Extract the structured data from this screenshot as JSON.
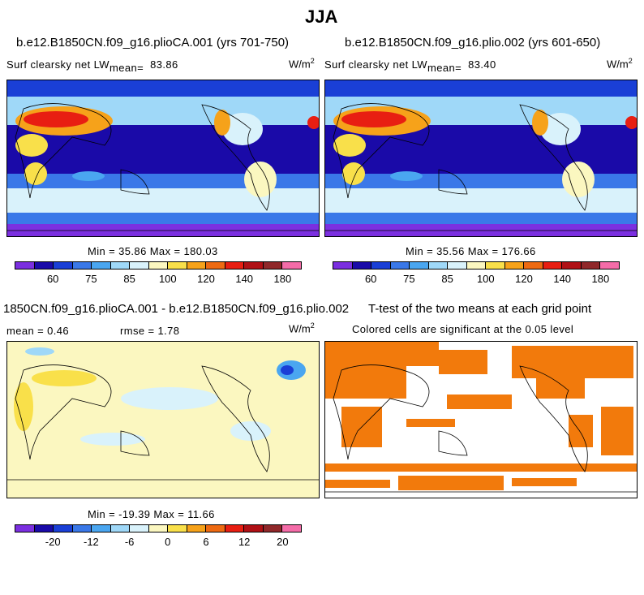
{
  "page_title": "JJA",
  "colors": {
    "abs_scale": [
      "#7b2fe0",
      "#1a0aa8",
      "#1a3fd6",
      "#3a78e8",
      "#4aa6f0",
      "#9fd8f8",
      "#d9f2fb",
      "#fbf7c0",
      "#f9e04a",
      "#f6a21a",
      "#ee6a12",
      "#e81e12",
      "#b01015",
      "#90282a",
      "#f46ca8"
    ],
    "diff_scale": [
      "#7b2fe0",
      "#1a0aa8",
      "#1a3fd6",
      "#3a78e8",
      "#4aa6f0",
      "#9fd8f8",
      "#d9f2fb",
      "#fbf7c0",
      "#f9e04a",
      "#f6a21a",
      "#ee6a12",
      "#e81e12",
      "#b01015",
      "#90282a",
      "#f46ca8"
    ],
    "significant": "#f27a0c"
  },
  "chart_data": [
    {
      "type": "heatmap",
      "title": "b.e12.B1850CN.f09_g16.plioCA.001 (yrs 701-750)",
      "variable": "Surf clearsky net LW",
      "mean_label": "mean=",
      "mean": "83.86",
      "units": "W/m",
      "units_exp": "2",
      "minmax_text": "Min =  35.86 Max = 180.03",
      "min": 35.86,
      "max": 180.03,
      "colorbar_ticks": [
        "60",
        "75",
        "85",
        "100",
        "120",
        "140",
        "180"
      ]
    },
    {
      "type": "heatmap",
      "title": "b.e12.B1850CN.f09_g16.plio.002 (yrs 601-650)",
      "variable": "Surf clearsky net LW",
      "mean_label": "mean=",
      "mean": "83.40",
      "units": "W/m",
      "units_exp": "2",
      "minmax_text": "Min =  35.56 Max = 176.66",
      "min": 35.56,
      "max": 176.66,
      "colorbar_ticks": [
        "60",
        "75",
        "85",
        "100",
        "120",
        "140",
        "180"
      ]
    },
    {
      "type": "heatmap",
      "title": "1850CN.f09_g16.plioCA.001 - b.e12.B1850CN.f09_g16.plio.002",
      "mean_text": "mean =   0.46",
      "rmse_text": "rmse =   1.78",
      "mean": 0.46,
      "rmse": 1.78,
      "units": "W/m",
      "units_exp": "2",
      "minmax_text": "Min = -19.39 Max =  11.66",
      "min": -19.39,
      "max": 11.66,
      "colorbar_ticks": [
        "-20",
        "-12",
        "-6",
        "0",
        "6",
        "12",
        "20"
      ]
    },
    {
      "type": "heatmap",
      "title": "T-test of the two means at each grid point",
      "subtitle": "Colored cells are significant at the 0.05 level",
      "significance_level": 0.05
    }
  ]
}
